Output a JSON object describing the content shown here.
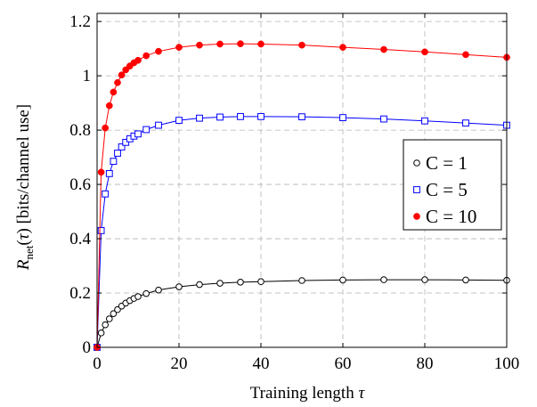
{
  "chart_data": {
    "type": "line",
    "xlabel": "Training length τ",
    "ylabel": "R_net(τ) [bits/channel use]",
    "xlim": [
      0,
      100
    ],
    "ylim": [
      0,
      1.23
    ],
    "xticks": [
      "0",
      "20",
      "40",
      "60",
      "80",
      "100"
    ],
    "yticks": [
      "0",
      "0.2",
      "0.4",
      "0.6",
      "0.8",
      "1",
      "1.2"
    ],
    "grid": true,
    "legend_position": "right",
    "series": [
      {
        "name": "C = 1",
        "color": "#000000",
        "marker": "open-circle",
        "x": [
          0,
          1,
          2,
          3,
          4,
          5,
          6,
          7,
          8,
          9,
          10,
          12,
          15,
          20,
          25,
          30,
          35,
          40,
          50,
          60,
          70,
          80,
          90,
          100
        ],
        "y": [
          0.0,
          0.053,
          0.083,
          0.105,
          0.124,
          0.139,
          0.152,
          0.163,
          0.172,
          0.18,
          0.187,
          0.198,
          0.211,
          0.223,
          0.231,
          0.236,
          0.24,
          0.242,
          0.246,
          0.248,
          0.249,
          0.249,
          0.248,
          0.247
        ]
      },
      {
        "name": "C = 5",
        "color": "#0000ff",
        "marker": "open-square",
        "x": [
          0,
          1,
          2,
          3,
          4,
          5,
          6,
          7,
          8,
          9,
          10,
          12,
          15,
          20,
          25,
          30,
          35,
          40,
          50,
          60,
          70,
          80,
          90,
          100
        ],
        "y": [
          0.0,
          0.43,
          0.565,
          0.64,
          0.685,
          0.715,
          0.738,
          0.755,
          0.768,
          0.778,
          0.786,
          0.802,
          0.818,
          0.836,
          0.844,
          0.848,
          0.85,
          0.85,
          0.849,
          0.846,
          0.841,
          0.834,
          0.826,
          0.818
        ]
      },
      {
        "name": "C = 10",
        "color": "#ff0000",
        "marker": "filled-circle",
        "x": [
          0,
          1,
          2,
          3,
          4,
          5,
          6,
          7,
          8,
          9,
          10,
          12,
          15,
          20,
          25,
          30,
          35,
          40,
          50,
          60,
          70,
          80,
          90,
          100
        ],
        "y": [
          0.0,
          0.645,
          0.808,
          0.89,
          0.94,
          0.975,
          1.003,
          1.022,
          1.036,
          1.048,
          1.057,
          1.074,
          1.09,
          1.105,
          1.113,
          1.117,
          1.118,
          1.117,
          1.113,
          1.105,
          1.097,
          1.088,
          1.078,
          1.068
        ]
      }
    ]
  }
}
